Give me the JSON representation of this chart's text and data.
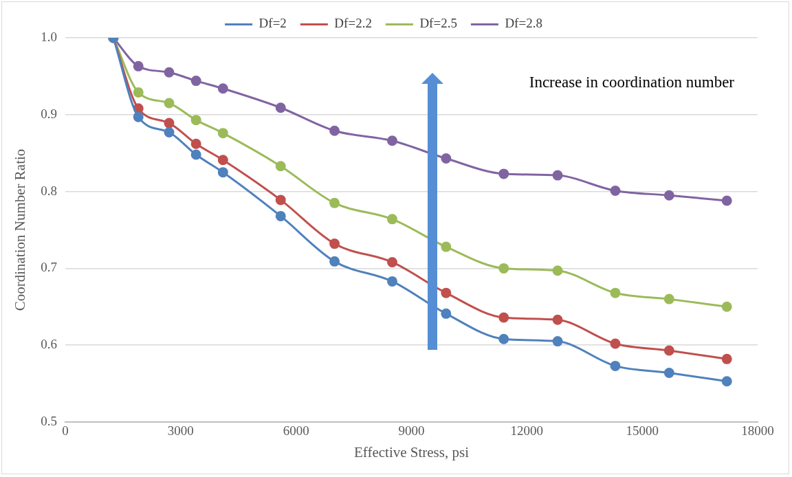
{
  "chart_data": {
    "type": "line",
    "xlabel": "Effective Stress, psi",
    "ylabel": "Coordination Number Ratio",
    "x": [
      1250,
      1900,
      2700,
      3400,
      4100,
      5600,
      7000,
      8500,
      9900,
      11400,
      12800,
      14300,
      15700,
      17200
    ],
    "series": [
      {
        "name": "Df=2",
        "color": "#4f81bd",
        "values": [
          1.0,
          0.897,
          0.877,
          0.848,
          0.825,
          0.768,
          0.709,
          0.683,
          0.641,
          0.608,
          0.605,
          0.573,
          0.564,
          0.553
        ]
      },
      {
        "name": "Df=2.2",
        "color": "#c0504d",
        "values": [
          1.0,
          0.908,
          0.889,
          0.862,
          0.841,
          0.789,
          0.732,
          0.708,
          0.668,
          0.636,
          0.633,
          0.602,
          0.593,
          0.582
        ]
      },
      {
        "name": "Df=2.5",
        "color": "#9bbb59",
        "values": [
          1.0,
          0.929,
          0.915,
          0.893,
          0.876,
          0.833,
          0.785,
          0.764,
          0.728,
          0.7,
          0.697,
          0.668,
          0.66,
          0.65
        ]
      },
      {
        "name": "Df=2.8",
        "color": "#8064a2",
        "values": [
          1.0,
          0.963,
          0.955,
          0.944,
          0.934,
          0.909,
          0.879,
          0.866,
          0.843,
          0.823,
          0.821,
          0.801,
          0.795,
          0.788
        ]
      }
    ],
    "xlim": [
      0,
      18000
    ],
    "xticks": [
      0,
      3000,
      6000,
      9000,
      12000,
      15000,
      18000
    ],
    "ylim": [
      0.5,
      1.0
    ],
    "yticks": [
      {
        "value": 0.5,
        "label": "0.5"
      },
      {
        "value": 0.6,
        "label": "0.6"
      },
      {
        "value": 0.7,
        "label": "0.7"
      },
      {
        "value": 0.8,
        "label": "0.8"
      },
      {
        "value": 0.9,
        "label": "0.9"
      },
      {
        "value": 1.0,
        "label": "1.0"
      }
    ],
    "grid": "y",
    "legend": "top",
    "marker": "circle",
    "line_style": "solid",
    "annotations": [
      "Increase in coordination number"
    ]
  }
}
